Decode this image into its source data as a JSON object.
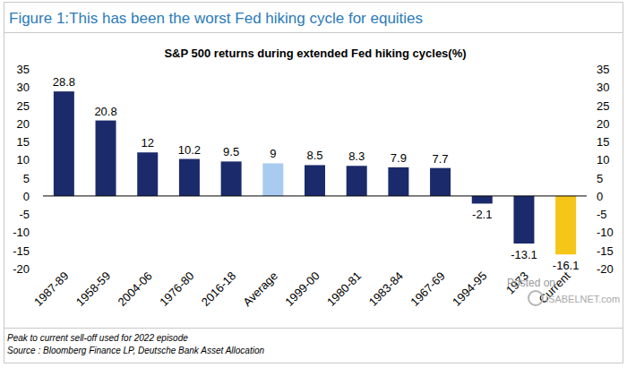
{
  "chart_data": {
    "type": "bar",
    "figure_title": "Figure 1:This has been the worst Fed hiking cycle for equities",
    "title": "S&P 500 returns during extended Fed hiking cycles(%)",
    "categories": [
      "1987-89",
      "1958-59",
      "2004-06",
      "1976-80",
      "2016-18",
      "Average",
      "1999-00",
      "1980-81",
      "1983-84",
      "1967-69",
      "1994-95",
      "1973",
      "Current"
    ],
    "values": [
      28.8,
      20.8,
      12,
      10.2,
      9.5,
      9,
      8.5,
      8.3,
      7.9,
      7.7,
      -2.1,
      -13.1,
      -16.1
    ],
    "colors": [
      "#1b2a6b",
      "#1b2a6b",
      "#1b2a6b",
      "#1b2a6b",
      "#1b2a6b",
      "#a9cbf0",
      "#1b2a6b",
      "#1b2a6b",
      "#1b2a6b",
      "#1b2a6b",
      "#1b2a6b",
      "#1b2a6b",
      "#f5c518"
    ],
    "ylim": [
      -20,
      35
    ],
    "yticks": [
      -20,
      -15,
      -10,
      -5,
      0,
      5,
      10,
      15,
      20,
      25,
      30,
      35
    ],
    "y2lim": [
      -20,
      35
    ],
    "y2ticks": [
      -20,
      -15,
      -10,
      -5,
      0,
      5,
      10,
      15,
      20,
      25,
      30,
      35
    ],
    "grid": false,
    "data_labels": true,
    "annotations": [
      "Posted on",
      "ISABELNET.com"
    ],
    "footnotes": [
      "Peak to current sell-off used for 2022 episode",
      "Source : Bloomberg Finance LP, Deutsche Bank Asset Allocation"
    ]
  }
}
